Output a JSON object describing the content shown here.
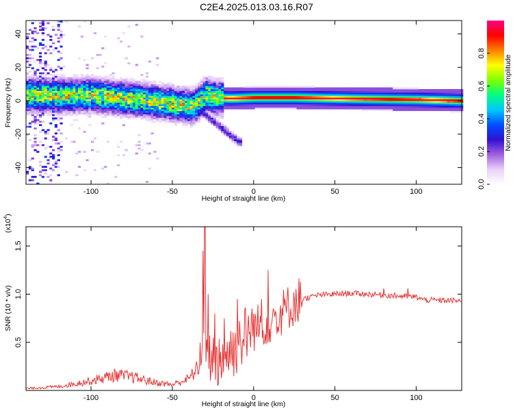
{
  "title": "C2E4.2025.013.03.16.R07",
  "chart_data": [
    {
      "type": "heatmap",
      "xlabel": "Height of straight line (km)",
      "ylabel": "Frequency (Hz)",
      "xlim": [
        -140,
        128
      ],
      "ylim": [
        -50,
        48
      ],
      "x_ticks": [
        -100,
        -50,
        0,
        50,
        100
      ],
      "y_ticks": [
        -40,
        -20,
        0,
        20,
        40
      ],
      "colorbar": {
        "label": "Normalized spectral amplitude",
        "range": [
          0,
          1
        ],
        "ticks": [
          0.0,
          0.2,
          0.4,
          0.6,
          0.8
        ],
        "colors": [
          "#ffffff",
          "#e8d0f8",
          "#a060e0",
          "#3010d0",
          "#0050ff",
          "#00c8ff",
          "#00ff80",
          "#80ff00",
          "#ffff00",
          "#ff8000",
          "#ff0000",
          "#ff0080"
        ]
      },
      "ridge": [
        {
          "x": -135,
          "f": 3
        },
        {
          "x": -120,
          "f": 2.5
        },
        {
          "x": -100,
          "f": 3
        },
        {
          "x": -80,
          "f": 1
        },
        {
          "x": -60,
          "f": -1
        },
        {
          "x": -45,
          "f": -3
        },
        {
          "x": -38,
          "f": -4
        },
        {
          "x": -33,
          "f": 0
        },
        {
          "x": -30,
          "f": 3
        },
        {
          "x": -25,
          "f": 1.5
        },
        {
          "x": -15,
          "f": 1
        },
        {
          "x": 0,
          "f": 1.5
        },
        {
          "x": 25,
          "f": 1.5
        },
        {
          "x": 60,
          "f": 0.8
        },
        {
          "x": 100,
          "f": 0.3
        },
        {
          "x": 128,
          "f": -0.5
        }
      ],
      "branch": [
        {
          "x": -35,
          "f": -5
        },
        {
          "x": -30,
          "f": -9
        },
        {
          "x": -25,
          "f": -13
        },
        {
          "x": -20,
          "f": -17
        },
        {
          "x": -15,
          "f": -21
        },
        {
          "x": -10,
          "f": -25
        }
      ]
    },
    {
      "type": "line",
      "xlabel": "Height of straight line (km)",
      "ylabel": "SNR (10 * v/v)",
      "y_multiplier_label": "(x10",
      "y_multiplier_exp": "4",
      "xlim": [
        -140,
        128
      ],
      "ylim": [
        0,
        1.7
      ],
      "x_ticks": [
        -100,
        -50,
        0,
        50,
        100
      ],
      "y_ticks": [
        0.5,
        1.0,
        1.5
      ],
      "y_tick_labels": [
        "0.5",
        "1.0",
        "1.5"
      ],
      "color": "#e83030",
      "envelope": [
        {
          "x": -140,
          "y": 0.02
        },
        {
          "x": -120,
          "y": 0.04
        },
        {
          "x": -100,
          "y": 0.1
        },
        {
          "x": -85,
          "y": 0.16
        },
        {
          "x": -75,
          "y": 0.14
        },
        {
          "x": -60,
          "y": 0.08
        },
        {
          "x": -50,
          "y": 0.06
        },
        {
          "x": -40,
          "y": 0.12
        },
        {
          "x": -33,
          "y": 0.25
        },
        {
          "x": -28,
          "y": 0.3
        },
        {
          "x": -20,
          "y": 0.3
        },
        {
          "x": -12,
          "y": 0.4
        },
        {
          "x": -5,
          "y": 0.55
        },
        {
          "x": 0,
          "y": 0.62
        },
        {
          "x": 10,
          "y": 0.7
        },
        {
          "x": 20,
          "y": 0.82
        },
        {
          "x": 30,
          "y": 0.95
        },
        {
          "x": 40,
          "y": 0.99
        },
        {
          "x": 60,
          "y": 1.01
        },
        {
          "x": 80,
          "y": 0.99
        },
        {
          "x": 100,
          "y": 0.97
        },
        {
          "x": 105,
          "y": 0.94
        },
        {
          "x": 128,
          "y": 0.93
        }
      ],
      "spikes": [
        {
          "x": -30,
          "y": 1.7
        },
        {
          "x": -31,
          "y": 1.45
        },
        {
          "x": -28,
          "y": 1.0
        },
        {
          "x": -24,
          "y": 0.8
        },
        {
          "x": -18,
          "y": 0.75
        },
        {
          "x": -10,
          "y": 0.95
        },
        {
          "x": 5,
          "y": 0.95
        },
        {
          "x": 9,
          "y": 1.25
        },
        {
          "x": 12,
          "y": 0.85
        },
        {
          "x": 80,
          "y": 1.06
        },
        {
          "x": 95,
          "y": 1.06
        }
      ]
    }
  ]
}
